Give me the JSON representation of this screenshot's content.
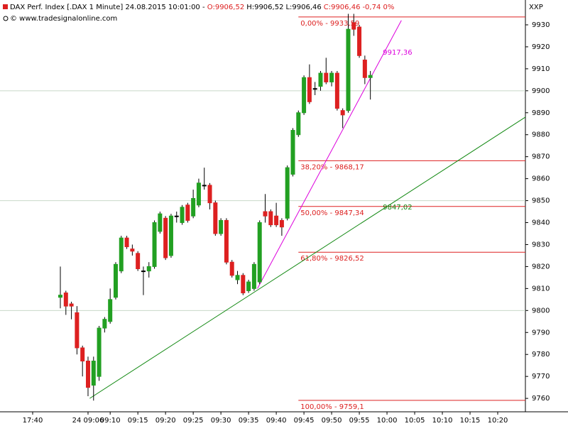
{
  "chart_data": {
    "type": "candlestick",
    "title": "DAX Perf. Index [.DAX  1 Minute] 24.08.2015 10:01:00 - ",
    "quote_open": "O:9906,52",
    "quote_high": "H:9906,52",
    "quote_low": "L:9906,46",
    "quote_close": "C:9906,46",
    "quote_change": "-0,74 0%",
    "source": "© www.tradesignalonline.com",
    "axis_name": "XXP",
    "up_color": "#22a022",
    "down_color": "#dd2020",
    "flat_color": "#000000",
    "grid_step": 50,
    "xlim": [
      -9.9,
      85
    ],
    "ylim": [
      9753.9,
      9941.3
    ],
    "yticks": [
      9760,
      9770,
      9780,
      9790,
      9800,
      9810,
      9820,
      9830,
      9840,
      9850,
      9860,
      9870,
      9880,
      9890,
      9900,
      9910,
      9920,
      9930
    ],
    "xticks": [
      {
        "value": -4,
        "label": "17:40"
      },
      {
        "value": 6,
        "label": "24 09:06"
      },
      {
        "value": 10,
        "label": "09:10"
      },
      {
        "value": 15,
        "label": "09:15"
      },
      {
        "value": 20,
        "label": "09:20"
      },
      {
        "value": 25,
        "label": "09:25"
      },
      {
        "value": 30,
        "label": "09:30"
      },
      {
        "value": 35,
        "label": "09:35"
      },
      {
        "value": 40,
        "label": "09:40"
      },
      {
        "value": 45,
        "label": "09:45"
      },
      {
        "value": 50,
        "label": "09:50"
      },
      {
        "value": 55,
        "label": "09:55"
      },
      {
        "value": 60,
        "label": "10:00"
      },
      {
        "value": 65,
        "label": "10:05"
      },
      {
        "value": 70,
        "label": "10:10"
      },
      {
        "value": 75,
        "label": "10:15"
      },
      {
        "value": 80,
        "label": "10:20"
      }
    ],
    "candles": [
      {
        "x": 1,
        "open": 9806,
        "high": 9820,
        "low": 9801,
        "close": 9807
      },
      {
        "x": 2,
        "open": 9808,
        "high": 9809,
        "low": 9798,
        "close": 9802
      },
      {
        "x": 3,
        "open": 9803,
        "high": 9804,
        "low": 9796,
        "close": 9802
      },
      {
        "x": 4,
        "open": 9799,
        "high": 9802,
        "low": 9780,
        "close": 9783
      },
      {
        "x": 5,
        "open": 9783,
        "high": 9784,
        "low": 9770,
        "close": 9777
      },
      {
        "x": 6,
        "open": 9777,
        "high": 9779,
        "low": 9761,
        "close": 9765
      },
      {
        "x": 7,
        "open": 9766,
        "high": 9779,
        "low": 9759,
        "close": 9777
      },
      {
        "x": 8,
        "open": 9770,
        "high": 9793,
        "low": 9768,
        "close": 9792
      },
      {
        "x": 9,
        "open": 9792,
        "high": 9797,
        "low": 9790,
        "close": 9796
      },
      {
        "x": 10,
        "open": 9795,
        "high": 9810,
        "low": 9794,
        "close": 9805
      },
      {
        "x": 11,
        "open": 9806,
        "high": 9822,
        "low": 9805,
        "close": 9821
      },
      {
        "x": 12,
        "open": 9818,
        "high": 9834,
        "low": 9817,
        "close": 9833
      },
      {
        "x": 13,
        "open": 9833,
        "high": 9834,
        "low": 9828,
        "close": 9829
      },
      {
        "x": 14,
        "open": 9828,
        "high": 9830,
        "low": 9825,
        "close": 9827
      },
      {
        "x": 15,
        "open": 9826,
        "high": 9827,
        "low": 9818,
        "close": 9819
      },
      {
        "x": 16,
        "open": 9818,
        "high": 9820,
        "low": 9807,
        "close": 9818
      },
      {
        "x": 17,
        "open": 9818,
        "high": 9822,
        "low": 9815,
        "close": 9820
      },
      {
        "x": 18,
        "open": 9820,
        "high": 9841,
        "low": 9819,
        "close": 9840
      },
      {
        "x": 19,
        "open": 9836,
        "high": 9845,
        "low": 9835,
        "close": 9844
      },
      {
        "x": 20,
        "open": 9842,
        "high": 9843,
        "low": 9823,
        "close": 9824
      },
      {
        "x": 21,
        "open": 9825,
        "high": 9844,
        "low": 9824,
        "close": 9843
      },
      {
        "x": 22,
        "open": 9843,
        "high": 9845,
        "low": 9840,
        "close": 9843
      },
      {
        "x": 23,
        "open": 9840,
        "high": 9848,
        "low": 9839,
        "close": 9847
      },
      {
        "x": 24,
        "open": 9848,
        "high": 9849,
        "low": 9840,
        "close": 9841
      },
      {
        "x": 25,
        "open": 9843,
        "high": 9855,
        "low": 9842,
        "close": 9851
      },
      {
        "x": 26,
        "open": 9848,
        "high": 9860,
        "low": 9847,
        "close": 9858
      },
      {
        "x": 27,
        "open": 9857,
        "high": 9865,
        "low": 9855,
        "close": 9857
      },
      {
        "x": 28,
        "open": 9857,
        "high": 9858,
        "low": 9846,
        "close": 9849
      },
      {
        "x": 29,
        "open": 9849,
        "high": 9850,
        "low": 9834,
        "close": 9835
      },
      {
        "x": 30,
        "open": 9835,
        "high": 9842,
        "low": 9834,
        "close": 9841
      },
      {
        "x": 31,
        "open": 9841,
        "high": 9842,
        "low": 9821,
        "close": 9822
      },
      {
        "x": 32,
        "open": 9822,
        "high": 9823,
        "low": 9815,
        "close": 9816
      },
      {
        "x": 33,
        "open": 9814,
        "high": 9818,
        "low": 9812,
        "close": 9816
      },
      {
        "x": 34,
        "open": 9816,
        "high": 9817,
        "low": 9807,
        "close": 9808
      },
      {
        "x": 35,
        "open": 9809,
        "high": 9814,
        "low": 9808,
        "close": 9813
      },
      {
        "x": 36,
        "open": 9810,
        "high": 9822,
        "low": 9809,
        "close": 9821
      },
      {
        "x": 37,
        "open": 9813,
        "high": 9841,
        "low": 9812,
        "close": 9840
      },
      {
        "x": 38,
        "open": 9845,
        "high": 9853,
        "low": 9840,
        "close": 9843
      },
      {
        "x": 39,
        "open": 9845,
        "high": 9846,
        "low": 9838,
        "close": 9839
      },
      {
        "x": 40,
        "open": 9843,
        "high": 9849,
        "low": 9838,
        "close": 9839
      },
      {
        "x": 41,
        "open": 9841,
        "high": 9842,
        "low": 9834,
        "close": 9838
      },
      {
        "x": 42,
        "open": 9842,
        "high": 9866,
        "low": 9841,
        "close": 9865
      },
      {
        "x": 43,
        "open": 9862,
        "high": 9883,
        "low": 9861,
        "close": 9882
      },
      {
        "x": 44,
        "open": 9880,
        "high": 9891,
        "low": 9879,
        "close": 9890
      },
      {
        "x": 45,
        "open": 9890,
        "high": 9907,
        "low": 9889,
        "close": 9906
      },
      {
        "x": 46,
        "open": 9906,
        "high": 9912,
        "low": 9894,
        "close": 9895
      },
      {
        "x": 47,
        "open": 9901,
        "high": 9904,
        "low": 9898,
        "close": 9901
      },
      {
        "x": 48,
        "open": 9902,
        "high": 9909,
        "low": 9900,
        "close": 9908
      },
      {
        "x": 49,
        "open": 9908,
        "high": 9915,
        "low": 9903,
        "close": 9904
      },
      {
        "x": 50,
        "open": 9904,
        "high": 9909,
        "low": 9902,
        "close": 9908
      },
      {
        "x": 51,
        "open": 9908,
        "high": 9909,
        "low": 9891,
        "close": 9892
      },
      {
        "x": 52,
        "open": 9891,
        "high": 9892,
        "low": 9883,
        "close": 9889
      },
      {
        "x": 53,
        "open": 9891,
        "high": 9935,
        "low": 9890,
        "close": 9928
      },
      {
        "x": 54,
        "open": 9931,
        "high": 9935,
        "low": 9925,
        "close": 9928
      },
      {
        "x": 55,
        "open": 9929,
        "high": 9930,
        "low": 9915,
        "close": 9916
      },
      {
        "x": 56,
        "open": 9914,
        "high": 9916,
        "low": 9903,
        "close": 9906
      },
      {
        "x": 57,
        "open": 9906,
        "high": 9909,
        "low": 9896,
        "close": 9907
      }
    ],
    "fib_color": "#dd2020",
    "fib_start": 44,
    "fib_levels": [
      {
        "value": 9933.59,
        "label": "0,00% - 9933,59"
      },
      {
        "value": 9868.17,
        "label": "38,20% - 9868,17"
      },
      {
        "value": 9847.34,
        "label": "50,00% - 9847,34"
      },
      {
        "value": 9826.52,
        "label": "61,80% - 9826,52"
      },
      {
        "value": 9759.1,
        "label": "100,00% - 9759,1"
      }
    ],
    "trendlines": [
      {
        "color": "#118811",
        "x": [
          6.3,
          85
        ],
        "y": [
          9760,
          9888
        ],
        "label_x": 59,
        "label": {
          "value": 9847.02,
          "label": "9847,02"
        }
      },
      {
        "color": "#dd00dd",
        "x": [
          36.6,
          62.6
        ],
        "y": [
          9810,
          9932
        ],
        "label_x": 59,
        "label": {
          "value": 9917.36,
          "label": "9917,36"
        }
      }
    ]
  }
}
